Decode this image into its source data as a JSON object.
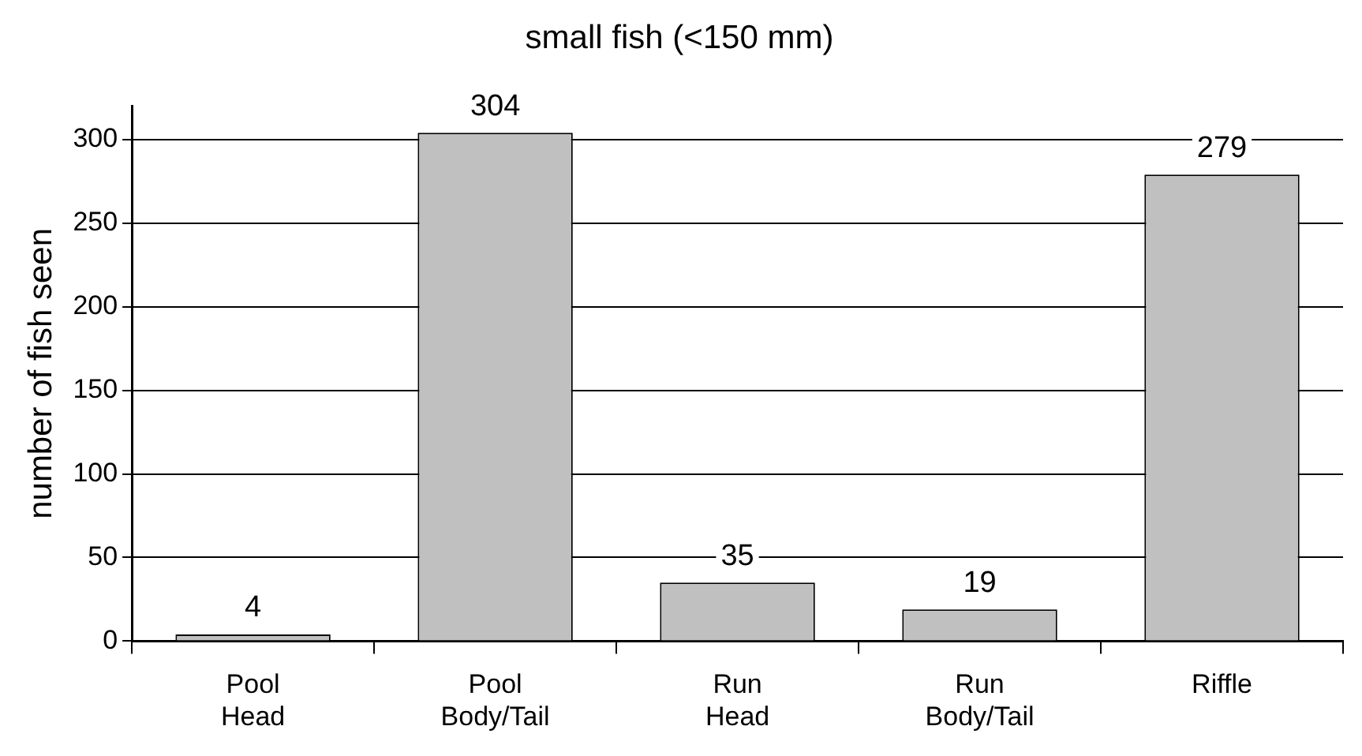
{
  "chart_data": {
    "type": "bar",
    "title": "small fish (<150 mm)",
    "ylabel": "number of fish seen",
    "categories": [
      "Pool Head",
      "Pool Body/Tail",
      "Run Head",
      "Run Body/Tail",
      "Riffle"
    ],
    "values": [
      4,
      304,
      35,
      19,
      279
    ],
    "color": "#c0c0c0",
    "ylim": [
      0,
      320
    ],
    "yticks": [
      0,
      50,
      100,
      150,
      200,
      250,
      300
    ],
    "grid": "y",
    "data_labels": true,
    "legend": false
  }
}
